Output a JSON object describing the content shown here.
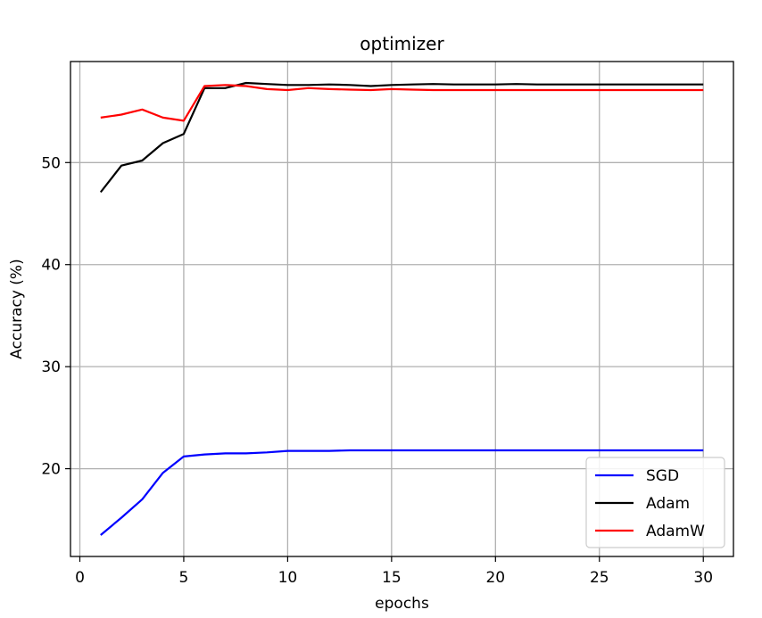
{
  "chart_data": {
    "type": "line",
    "title": "optimizer",
    "xlabel": "epochs",
    "ylabel": "Accuracy (%)",
    "xlim": [
      -0.45,
      31.45
    ],
    "ylim": [
      11.4,
      59.9
    ],
    "xticks": [
      0,
      5,
      10,
      15,
      20,
      25,
      30
    ],
    "yticks": [
      20,
      30,
      40,
      50
    ],
    "grid": true,
    "legend_position": "lower right",
    "x": [
      1,
      2,
      3,
      4,
      5,
      6,
      7,
      8,
      9,
      10,
      11,
      12,
      13,
      14,
      15,
      16,
      17,
      18,
      19,
      20,
      21,
      22,
      23,
      24,
      25,
      26,
      27,
      28,
      29,
      30
    ],
    "series": [
      {
        "name": "SGD",
        "color": "#0000ff",
        "values": [
          13.5,
          15.2,
          17.0,
          19.6,
          21.2,
          21.4,
          21.5,
          21.5,
          21.6,
          21.75,
          21.75,
          21.75,
          21.8,
          21.8,
          21.8,
          21.8,
          21.8,
          21.8,
          21.8,
          21.8,
          21.8,
          21.8,
          21.8,
          21.8,
          21.8,
          21.8,
          21.8,
          21.8,
          21.8,
          21.8
        ]
      },
      {
        "name": "Adam",
        "color": "#000000",
        "values": [
          47.1,
          49.7,
          50.2,
          51.9,
          52.8,
          57.3,
          57.3,
          57.8,
          57.7,
          57.6,
          57.6,
          57.65,
          57.6,
          57.5,
          57.6,
          57.65,
          57.7,
          57.65,
          57.65,
          57.65,
          57.7,
          57.65,
          57.65,
          57.65,
          57.65,
          57.65,
          57.65,
          57.65,
          57.65,
          57.65
        ]
      },
      {
        "name": "AdamW",
        "color": "#ff0000",
        "values": [
          54.4,
          54.7,
          55.2,
          54.4,
          54.1,
          57.5,
          57.6,
          57.5,
          57.2,
          57.1,
          57.3,
          57.2,
          57.15,
          57.1,
          57.2,
          57.15,
          57.1,
          57.1,
          57.1,
          57.1,
          57.1,
          57.1,
          57.1,
          57.1,
          57.1,
          57.1,
          57.1,
          57.1,
          57.1,
          57.1
        ]
      }
    ]
  }
}
